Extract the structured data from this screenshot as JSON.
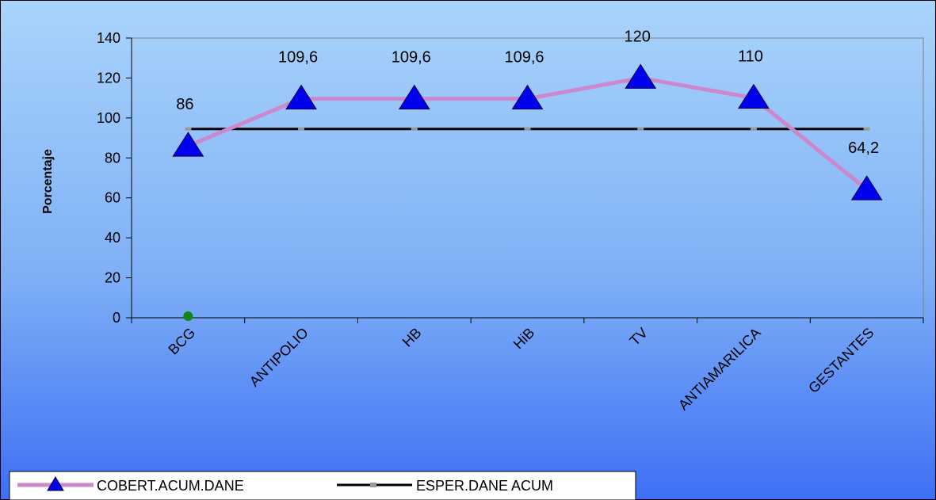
{
  "chart_data": {
    "type": "line",
    "title": "",
    "xlabel": "",
    "ylabel": "Porcentaje",
    "categories": [
      "BCG",
      "ANTIPOLIO",
      "HB",
      "HiB",
      "TV",
      "ANTIAMARILICA",
      "GESTANTES"
    ],
    "ylim": [
      0,
      140
    ],
    "yticks": [
      0,
      20,
      40,
      60,
      80,
      100,
      120,
      140
    ],
    "grid": false,
    "legend_position": "bottom-left",
    "series": [
      {
        "name": "COBERT.ACUM.DANE",
        "values": [
          86,
          109.6,
          109.6,
          109.6,
          120,
          110,
          64.2
        ],
        "labels": [
          "86",
          "109,6",
          "109,6",
          "109,6",
          "120",
          "110",
          "64,2"
        ],
        "color": "#cc88cc",
        "marker_color": "#0000ee"
      },
      {
        "name": "ESPER.DANE ACUM",
        "values": [
          94.5,
          94.5,
          94.5,
          94.5,
          94.5,
          94.5,
          94.5
        ],
        "color": "#000000",
        "marker_color": "#999999"
      }
    ],
    "extra_point": {
      "category": "BCG",
      "value": 0.8,
      "color": "#118811"
    }
  }
}
